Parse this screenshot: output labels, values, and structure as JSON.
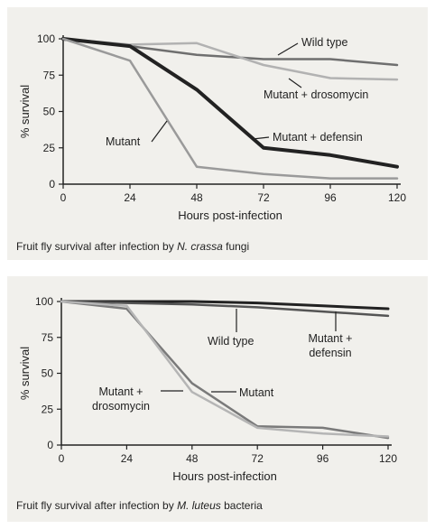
{
  "chart_data": [
    {
      "type": "line",
      "caption": {
        "prefix": "Fruit fly survival after infection by",
        "italic": "N. crassa",
        "suffix": "fungi"
      },
      "xlabel": "Hours post-infection",
      "ylabel": "% survival",
      "x_ticks": [
        0,
        24,
        48,
        72,
        96,
        120
      ],
      "y_ticks": [
        0,
        25,
        50,
        75,
        100
      ],
      "xlim": [
        0,
        120
      ],
      "ylim": [
        0,
        100
      ],
      "grid": false,
      "series": [
        {
          "name": "Wild type",
          "color": "#6f6f6f",
          "width": 2.5,
          "x": [
            0,
            24,
            48,
            72,
            96,
            120
          ],
          "y": [
            100,
            95,
            89,
            86,
            86,
            82
          ]
        },
        {
          "name": "Mutant + drosomycin",
          "color": "#b2b2b2",
          "width": 2.5,
          "x": [
            0,
            24,
            48,
            72,
            96,
            120
          ],
          "y": [
            100,
            96,
            97,
            82,
            73,
            72
          ]
        },
        {
          "name": "Mutant + defensin",
          "color": "#222222",
          "width": 4,
          "x": [
            0,
            24,
            48,
            72,
            96,
            120
          ],
          "y": [
            100,
            95,
            65,
            25,
            20,
            12
          ]
        },
        {
          "name": "Mutant",
          "color": "#9a9a9a",
          "width": 2.5,
          "x": [
            0,
            24,
            48,
            72,
            96,
            120
          ],
          "y": [
            100,
            85,
            12,
            7,
            4,
            4
          ]
        }
      ]
    },
    {
      "type": "line",
      "caption": {
        "prefix": "Fruit fly survival after infection by",
        "italic": "M. luteus",
        "suffix": "bacteria"
      },
      "xlabel": "Hours post-infection",
      "ylabel": "% survival",
      "x_ticks": [
        0,
        24,
        48,
        72,
        96,
        120
      ],
      "y_ticks": [
        0,
        25,
        50,
        75,
        100
      ],
      "xlim": [
        0,
        120
      ],
      "ylim": [
        0,
        100
      ],
      "grid": false,
      "series": [
        {
          "name": "Wild type",
          "color": "#222222",
          "width": 3,
          "x": [
            0,
            24,
            48,
            72,
            96,
            120
          ],
          "y": [
            100,
            100,
            100,
            99,
            97,
            95
          ]
        },
        {
          "name": "Mutant + defensin",
          "color": "#555555",
          "width": 2.5,
          "x": [
            0,
            24,
            48,
            72,
            96,
            120
          ],
          "y": [
            100,
            99,
            98,
            96,
            93,
            90
          ]
        },
        {
          "name": "Mutant",
          "color": "#7a7a7a",
          "width": 2.5,
          "x": [
            0,
            24,
            48,
            72,
            96,
            120
          ],
          "y": [
            100,
            95,
            43,
            13,
            12,
            5
          ]
        },
        {
          "name": "Mutant + drosomycin",
          "color": "#b5b5b5",
          "width": 2.5,
          "x": [
            0,
            24,
            48,
            72,
            96,
            120
          ],
          "y": [
            100,
            97,
            37,
            12,
            8,
            6
          ]
        }
      ]
    }
  ]
}
